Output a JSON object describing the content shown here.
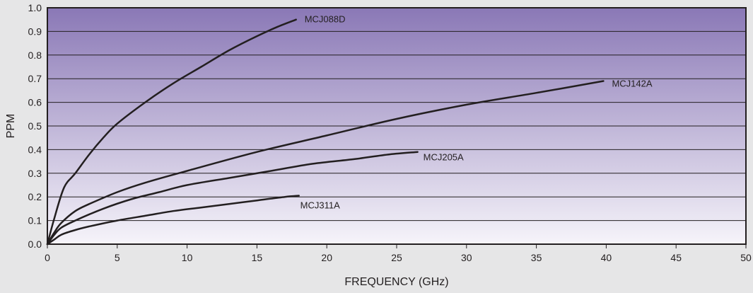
{
  "chart_data": {
    "type": "line",
    "title": "",
    "xlabel": "FREQUENCY (GHz)",
    "ylabel": "PPM",
    "xlim": [
      0,
      50
    ],
    "ylim": [
      0,
      1.0
    ],
    "x_ticks": [
      "0",
      "5",
      "10",
      "15",
      "20",
      "25",
      "30",
      "35",
      "40",
      "45",
      "50"
    ],
    "y_ticks": [
      "0.0",
      "0.1",
      "0.2",
      "0.3",
      "0.4",
      "0.5",
      "0.6",
      "0.7",
      "0.8",
      "0.9",
      "1.0"
    ],
    "grid": "horizontal",
    "legend": "inline labels at line ends",
    "colors": {
      "background": "#e6e6e7",
      "plot_top": "#8a78b6",
      "plot_bottom": "#f6f4fa",
      "line": "#231f20",
      "grid": "#231f20"
    },
    "series": [
      {
        "name": "MCJ088D",
        "x": [
          0,
          0.5,
          1.2,
          2,
          3,
          4,
          5,
          7,
          9,
          11,
          13,
          15,
          16.5,
          17.8
        ],
        "y": [
          0,
          0.11,
          0.24,
          0.3,
          0.38,
          0.45,
          0.51,
          0.6,
          0.68,
          0.75,
          0.82,
          0.88,
          0.92,
          0.95
        ]
      },
      {
        "name": "MCJ142A",
        "x": [
          0,
          0.5,
          1,
          2,
          3,
          5,
          7,
          10,
          15,
          20,
          25,
          30,
          35,
          39.8
        ],
        "y": [
          0,
          0.05,
          0.09,
          0.14,
          0.17,
          0.22,
          0.26,
          0.31,
          0.39,
          0.46,
          0.53,
          0.59,
          0.64,
          0.69
        ]
      },
      {
        "name": "MCJ205A",
        "x": [
          0,
          0.5,
          1,
          2,
          4,
          6,
          8,
          10,
          13,
          16,
          19,
          22,
          24.5,
          26.5
        ],
        "y": [
          0,
          0.04,
          0.07,
          0.1,
          0.15,
          0.19,
          0.22,
          0.25,
          0.28,
          0.31,
          0.34,
          0.36,
          0.38,
          0.39
        ]
      },
      {
        "name": "MCJ311A",
        "x": [
          0,
          0.5,
          1,
          2,
          3,
          5,
          7,
          9,
          11,
          13,
          15,
          17,
          18
        ],
        "y": [
          0,
          0.02,
          0.04,
          0.06,
          0.075,
          0.1,
          0.12,
          0.14,
          0.155,
          0.17,
          0.185,
          0.2,
          0.205
        ]
      }
    ]
  }
}
